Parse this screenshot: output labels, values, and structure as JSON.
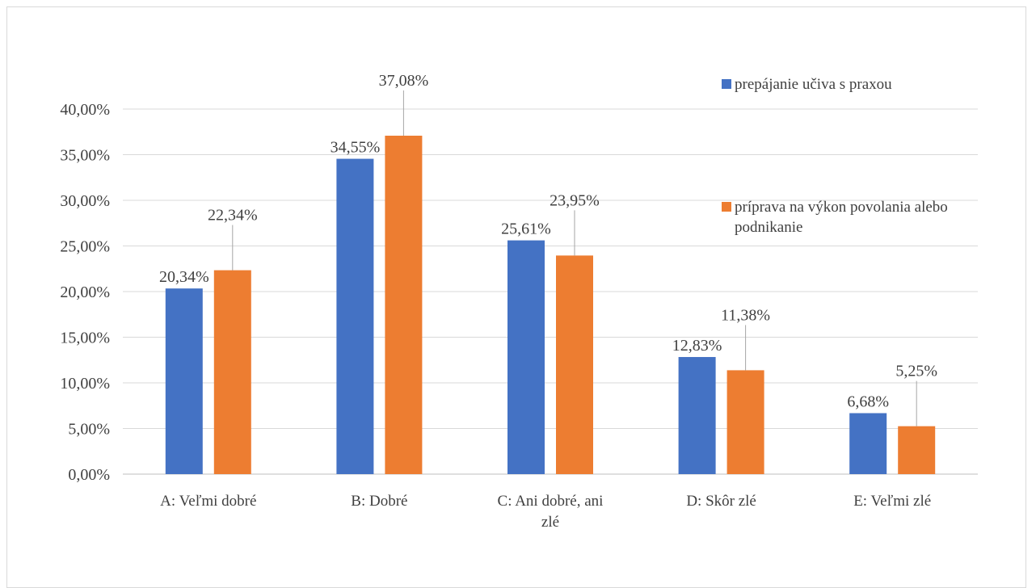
{
  "chart_data": {
    "type": "bar",
    "categories": [
      [
        "A: Veľmi dobré"
      ],
      [
        "B: Dobré"
      ],
      [
        "C: Ani dobré, ani",
        "zlé"
      ],
      [
        "D: Skôr zlé"
      ],
      [
        "E: Veľmi zlé"
      ]
    ],
    "series": [
      {
        "name": "prepájanie učiva s praxou",
        "name_lines": [
          "prepájanie učiva s praxou"
        ],
        "color": "#4472C4",
        "values": [
          20.34,
          34.55,
          25.61,
          12.83,
          6.68
        ],
        "labels": [
          "20,34%",
          "34,55%",
          "25,61%",
          "12,83%",
          "6,68%"
        ]
      },
      {
        "name": "príprava na výkon povolania alebo podnikanie",
        "name_lines": [
          "príprava na výkon povolania alebo",
          "podnikanie"
        ],
        "color": "#ED7D31",
        "values": [
          22.34,
          37.08,
          23.95,
          11.38,
          5.25
        ],
        "labels": [
          "22,34%",
          "37,08%",
          "23,95%",
          "11,38%",
          "5,25%"
        ]
      }
    ],
    "yticks": [
      "0,00%",
      "5,00%",
      "10,00%",
      "15,00%",
      "20,00%",
      "25,00%",
      "30,00%",
      "35,00%",
      "40,00%"
    ],
    "ylim": [
      0,
      40
    ],
    "grid": true,
    "legend_position": "right",
    "title": "",
    "xlabel": "",
    "ylabel": ""
  }
}
